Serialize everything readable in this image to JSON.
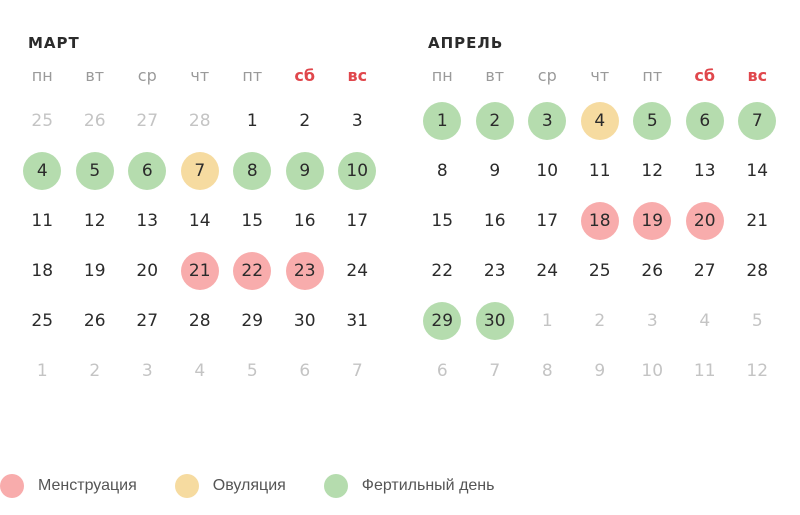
{
  "colors": {
    "fertile": "#b5dcae",
    "ovulation": "#f6dba0",
    "menstruation": "#f8acac",
    "weekend": "#e0474c",
    "muted": "#c4c4c4"
  },
  "weekdays": [
    {
      "label": "пн",
      "weekend": false
    },
    {
      "label": "вт",
      "weekend": false
    },
    {
      "label": "ср",
      "weekend": false
    },
    {
      "label": "чт",
      "weekend": false
    },
    {
      "label": "пт",
      "weekend": false
    },
    {
      "label": "сб",
      "weekend": true
    },
    {
      "label": "вс",
      "weekend": true
    }
  ],
  "months": [
    {
      "title": "МАРТ",
      "days": [
        {
          "d": "25",
          "muted": true
        },
        {
          "d": "26",
          "muted": true
        },
        {
          "d": "27",
          "muted": true
        },
        {
          "d": "28",
          "muted": true
        },
        {
          "d": "1"
        },
        {
          "d": "2"
        },
        {
          "d": "3"
        },
        {
          "d": "4",
          "type": "fertile"
        },
        {
          "d": "5",
          "type": "fertile"
        },
        {
          "d": "6",
          "type": "fertile"
        },
        {
          "d": "7",
          "type": "ovulation"
        },
        {
          "d": "8",
          "type": "fertile"
        },
        {
          "d": "9",
          "type": "fertile"
        },
        {
          "d": "10",
          "type": "fertile"
        },
        {
          "d": "11"
        },
        {
          "d": "12"
        },
        {
          "d": "13"
        },
        {
          "d": "14"
        },
        {
          "d": "15"
        },
        {
          "d": "16"
        },
        {
          "d": "17"
        },
        {
          "d": "18"
        },
        {
          "d": "19"
        },
        {
          "d": "20"
        },
        {
          "d": "21",
          "type": "menstruation"
        },
        {
          "d": "22",
          "type": "menstruation"
        },
        {
          "d": "23",
          "type": "menstruation"
        },
        {
          "d": "24"
        },
        {
          "d": "25"
        },
        {
          "d": "26"
        },
        {
          "d": "27"
        },
        {
          "d": "28"
        },
        {
          "d": "29"
        },
        {
          "d": "30"
        },
        {
          "d": "31"
        },
        {
          "d": "1",
          "muted": true
        },
        {
          "d": "2",
          "muted": true
        },
        {
          "d": "3",
          "muted": true
        },
        {
          "d": "4",
          "muted": true
        },
        {
          "d": "5",
          "muted": true
        },
        {
          "d": "6",
          "muted": true
        },
        {
          "d": "7",
          "muted": true
        }
      ]
    },
    {
      "title": "АПРЕЛЬ",
      "days": [
        {
          "d": "1",
          "type": "fertile"
        },
        {
          "d": "2",
          "type": "fertile"
        },
        {
          "d": "3",
          "type": "fertile"
        },
        {
          "d": "4",
          "type": "ovulation"
        },
        {
          "d": "5",
          "type": "fertile"
        },
        {
          "d": "6",
          "type": "fertile"
        },
        {
          "d": "7",
          "type": "fertile"
        },
        {
          "d": "8"
        },
        {
          "d": "9"
        },
        {
          "d": "10"
        },
        {
          "d": "11"
        },
        {
          "d": "12"
        },
        {
          "d": "13"
        },
        {
          "d": "14"
        },
        {
          "d": "15"
        },
        {
          "d": "16"
        },
        {
          "d": "17"
        },
        {
          "d": "18",
          "type": "menstruation"
        },
        {
          "d": "19",
          "type": "menstruation"
        },
        {
          "d": "20",
          "type": "menstruation"
        },
        {
          "d": "21"
        },
        {
          "d": "22"
        },
        {
          "d": "23"
        },
        {
          "d": "24"
        },
        {
          "d": "25"
        },
        {
          "d": "26"
        },
        {
          "d": "27"
        },
        {
          "d": "28"
        },
        {
          "d": "29",
          "type": "fertile"
        },
        {
          "d": "30",
          "type": "fertile"
        },
        {
          "d": "1",
          "muted": true
        },
        {
          "d": "2",
          "muted": true
        },
        {
          "d": "3",
          "muted": true
        },
        {
          "d": "4",
          "muted": true
        },
        {
          "d": "5",
          "muted": true
        },
        {
          "d": "6",
          "muted": true
        },
        {
          "d": "7",
          "muted": true
        },
        {
          "d": "8",
          "muted": true
        },
        {
          "d": "9",
          "muted": true
        },
        {
          "d": "10",
          "muted": true
        },
        {
          "d": "11",
          "muted": true
        },
        {
          "d": "12",
          "muted": true
        }
      ]
    }
  ],
  "legend": [
    {
      "key": "menstruation",
      "label": "Менструация",
      "color": "#f8acac"
    },
    {
      "key": "ovulation",
      "label": "Овуляция",
      "color": "#f6dba0"
    },
    {
      "key": "fertile",
      "label": "Фертильный день",
      "color": "#b5dcae"
    }
  ]
}
